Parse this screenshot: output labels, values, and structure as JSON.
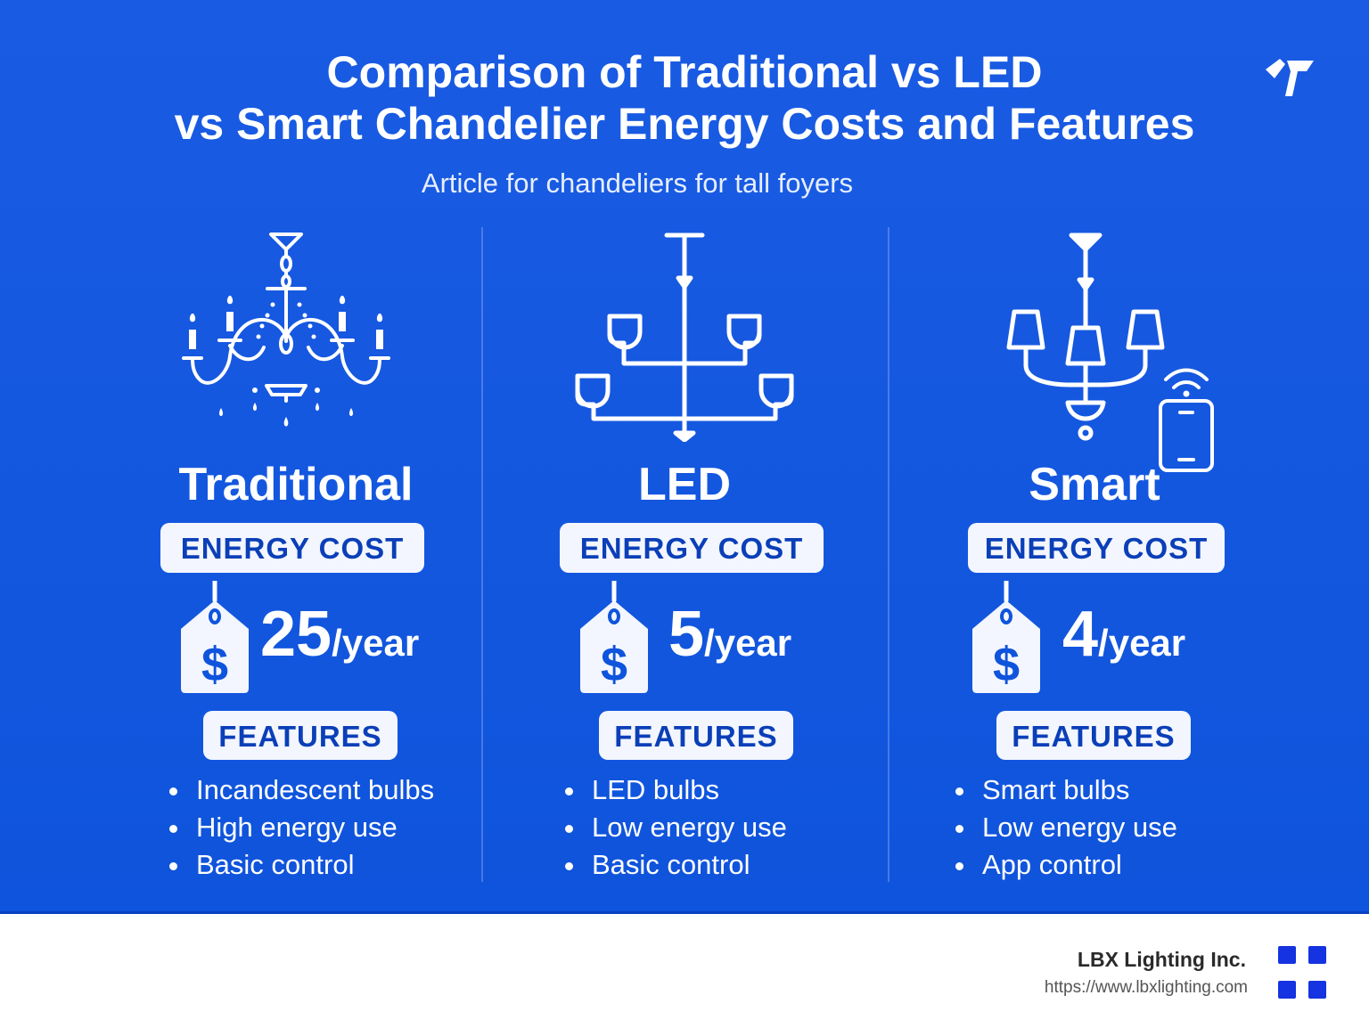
{
  "title": {
    "line1": "Comparison of Traditional vs LED",
    "line2": "vs Smart Chandelier Energy Costs and Features"
  },
  "subtitle": "Article for chandeliers for tall foyers",
  "columns": [
    {
      "name": "Traditional",
      "energy_label": "ENERGY COST",
      "cost_value": "25",
      "cost_unit": "/year",
      "features_label": "FEATURES",
      "features": [
        "Incandescent bulbs",
        "High energy use",
        "Basic control"
      ]
    },
    {
      "name": "LED",
      "energy_label": "ENERGY COST",
      "cost_value": "5",
      "cost_unit": "/year",
      "features_label": "FEATURES",
      "features": [
        "LED bulbs",
        "Low energy use",
        "Basic control"
      ]
    },
    {
      "name": "Smart",
      "energy_label": "ENERGY COST",
      "cost_value": "4",
      "cost_unit": "/year",
      "features_label": "FEATURES",
      "features": [
        "Smart bulbs",
        "Low energy use",
        "App control"
      ]
    }
  ],
  "footer": {
    "company": "LBX Lighting Inc.",
    "url": "https://www.lbxlighting.com"
  },
  "icons": {
    "traditional": "candle-chandelier-icon",
    "led": "led-chandelier-icon",
    "smart": "smart-chandelier-icon",
    "phone": "smartphone-wifi-icon",
    "price_tag": "dollar-price-tag-icon",
    "logo": "brand-logo-icon"
  },
  "colors": {
    "panel_blue": "#1358e0",
    "pill_bg": "#f3f6ff",
    "pill_text": "#0b3fb8",
    "brand_square": "#1533e0"
  }
}
